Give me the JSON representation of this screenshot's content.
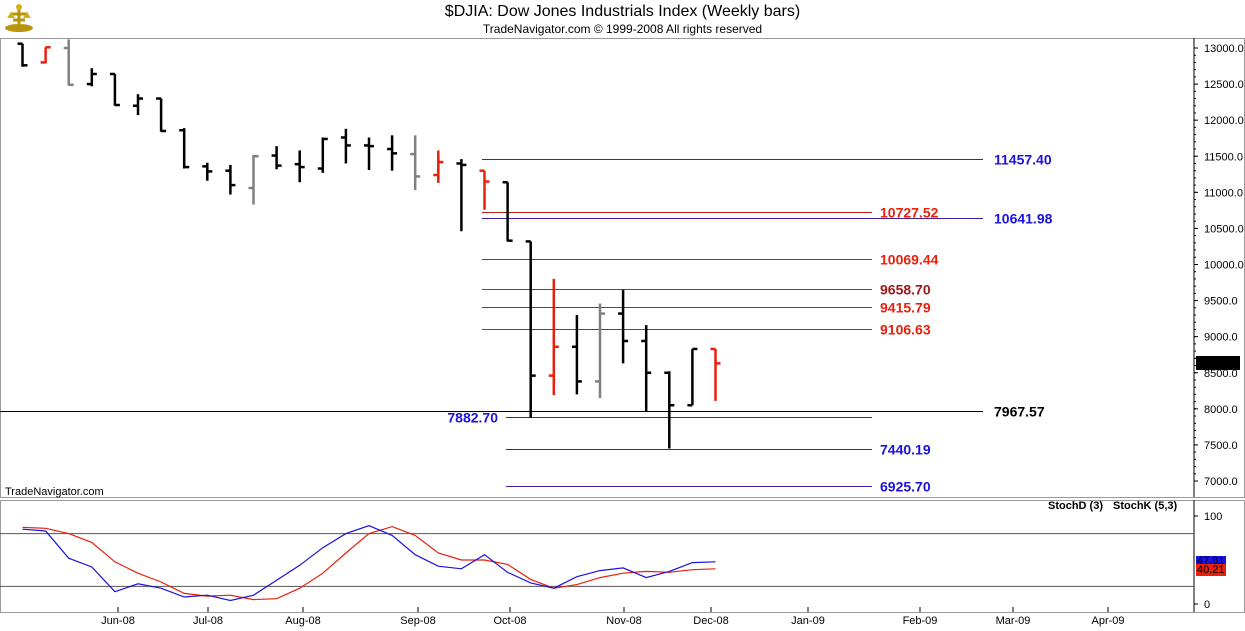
{
  "header": {
    "title": "$DJIA:  Dow Jones Industrials Index  (Weekly bars)",
    "subtitle": "TradeNavigator.com © 1999-2008 All rights reserved"
  },
  "watermark": "TradeNavigator.com",
  "colors": {
    "up_bar": "#000000",
    "down_bar": "#e8200c",
    "inside_bar": "#808080",
    "level_red": "#e8200c",
    "level_blue": "#1a12e0",
    "stochD": "#e8200c",
    "stochK": "#1a12e0"
  },
  "chart_data": [
    {
      "type": "ohlc",
      "x_tick_labels": [
        "Jun-08",
        "Jul-08",
        "Aug-08",
        "Sep-08",
        "Oct-08",
        "Nov-08",
        "Dec-08",
        "Jan-09",
        "Feb-09",
        "Mar-09",
        "Apr-09"
      ],
      "y_tick_labels": [
        "13000.0",
        "12500.0",
        "12000.0",
        "11500.0",
        "11000.0",
        "10500.0",
        "10000.0",
        "9500.0",
        "9000.0",
        "8500.0",
        "8000.0",
        "7500.0",
        "7000.0"
      ],
      "ylim": [
        6800,
        13120
      ],
      "last_price": "8635.45",
      "bars": [
        {
          "o": 13060,
          "h": 13060,
          "l": 12740,
          "c": 12760,
          "color": "up"
        },
        {
          "o": 12800,
          "h": 13010,
          "l": 12790,
          "c": 13010,
          "color": "down"
        },
        {
          "o": 13000,
          "h": 13120,
          "l": 12480,
          "c": 12490,
          "color": "inside"
        },
        {
          "o": 12500,
          "h": 12720,
          "l": 12470,
          "c": 12640,
          "color": "up"
        },
        {
          "o": 12640,
          "h": 12640,
          "l": 12200,
          "c": 12210,
          "color": "up"
        },
        {
          "o": 12200,
          "h": 12360,
          "l": 12070,
          "c": 12300,
          "color": "up"
        },
        {
          "o": 12300,
          "h": 12300,
          "l": 11840,
          "c": 11850,
          "color": "up"
        },
        {
          "o": 11860,
          "h": 11890,
          "l": 11330,
          "c": 11350,
          "color": "up"
        },
        {
          "o": 11360,
          "h": 11410,
          "l": 11160,
          "c": 11290,
          "color": "up"
        },
        {
          "o": 11300,
          "h": 11380,
          "l": 10970,
          "c": 11100,
          "color": "up"
        },
        {
          "o": 11060,
          "h": 11520,
          "l": 10830,
          "c": 11500,
          "color": "inside"
        },
        {
          "o": 11510,
          "h": 11640,
          "l": 11320,
          "c": 11370,
          "color": "up"
        },
        {
          "o": 11390,
          "h": 11580,
          "l": 11140,
          "c": 11350,
          "color": "up"
        },
        {
          "o": 11330,
          "h": 11760,
          "l": 11270,
          "c": 11740,
          "color": "up"
        },
        {
          "o": 11760,
          "h": 11880,
          "l": 11400,
          "c": 11650,
          "color": "up"
        },
        {
          "o": 11650,
          "h": 11760,
          "l": 11310,
          "c": 11640,
          "color": "up"
        },
        {
          "o": 11600,
          "h": 11790,
          "l": 11300,
          "c": 11540,
          "color": "up"
        },
        {
          "o": 11530,
          "h": 11790,
          "l": 11030,
          "c": 11220,
          "color": "inside"
        },
        {
          "o": 11240,
          "h": 11580,
          "l": 11130,
          "c": 11420,
          "color": "down"
        },
        {
          "o": 11400,
          "h": 11460,
          "l": 10460,
          "c": 11380,
          "color": "up"
        },
        {
          "o": 11300,
          "h": 11300,
          "l": 10760,
          "c": 11150,
          "color": "down"
        },
        {
          "o": 11140,
          "h": 11140,
          "l": 10320,
          "c": 10330,
          "color": "up"
        },
        {
          "o": 10320,
          "h": 10320,
          "l": 7880,
          "c": 8460,
          "color": "up"
        },
        {
          "o": 8460,
          "h": 9800,
          "l": 8190,
          "c": 8860,
          "color": "down"
        },
        {
          "o": 8860,
          "h": 9300,
          "l": 8200,
          "c": 8380,
          "color": "up"
        },
        {
          "o": 8380,
          "h": 9460,
          "l": 8150,
          "c": 9320,
          "color": "inside"
        },
        {
          "o": 9320,
          "h": 9650,
          "l": 8630,
          "c": 8940,
          "color": "up"
        },
        {
          "o": 8940,
          "h": 9160,
          "l": 7970,
          "c": 8500,
          "color": "up"
        },
        {
          "o": 8500,
          "h": 8520,
          "l": 7450,
          "c": 8050,
          "color": "up"
        },
        {
          "o": 8050,
          "h": 8830,
          "l": 8050,
          "c": 8830,
          "color": "up"
        },
        {
          "o": 8830,
          "h": 8830,
          "l": 8110,
          "c": 8630,
          "color": "down"
        }
      ],
      "levels": [
        {
          "label": "11457.40",
          "value": 11457.4,
          "color": "level_blue"
        },
        {
          "label": "10727.52",
          "value": 10727.52,
          "color": "level_red"
        },
        {
          "label": "10641.98",
          "value": 10641.98,
          "color": "level_blue"
        },
        {
          "label": "10069.44",
          "value": 10069.44,
          "color": "level_red"
        },
        {
          "label": "9658.70",
          "value": 9658.7,
          "color": "level_dark"
        },
        {
          "label": "9415.79",
          "value": 9415.79,
          "color": "level_red"
        },
        {
          "label": "9106.63",
          "value": 9106.63,
          "color": "level_red"
        },
        {
          "label": "7967.57",
          "value": 7967.57,
          "color": "level_black"
        },
        {
          "label": "7882.70",
          "value": 7882.7,
          "color": "level_blue"
        },
        {
          "label": "7440.19",
          "value": 7440.19,
          "color": "level_blue"
        },
        {
          "label": "6925.70",
          "value": 6925.7,
          "color": "level_blue"
        }
      ]
    },
    {
      "type": "line",
      "y_tick_labels": [
        "100",
        "0"
      ],
      "ylim": [
        0,
        100
      ],
      "legend": [
        "StochD (3)",
        "StochK (5,3)"
      ],
      "ref_lines": [
        80,
        20
      ],
      "value_labels": [
        "47.81",
        "40.21"
      ],
      "series": [
        {
          "name": "StochD (3)",
          "values": [
            87,
            86,
            80,
            70,
            48,
            35,
            25,
            12,
            9,
            10,
            5,
            6,
            18,
            35,
            58,
            80,
            88,
            78,
            58,
            50,
            50,
            45,
            28,
            18,
            22,
            30,
            35,
            37,
            36,
            39,
            40
          ]
        },
        {
          "name": "StochK (5,3)",
          "values": [
            85,
            83,
            52,
            42,
            14,
            23,
            18,
            8,
            10,
            4,
            10,
            27,
            44,
            64,
            80,
            89,
            78,
            56,
            43,
            40,
            56,
            36,
            24,
            18,
            31,
            38,
            41,
            30,
            37,
            47,
            48
          ]
        }
      ]
    }
  ]
}
